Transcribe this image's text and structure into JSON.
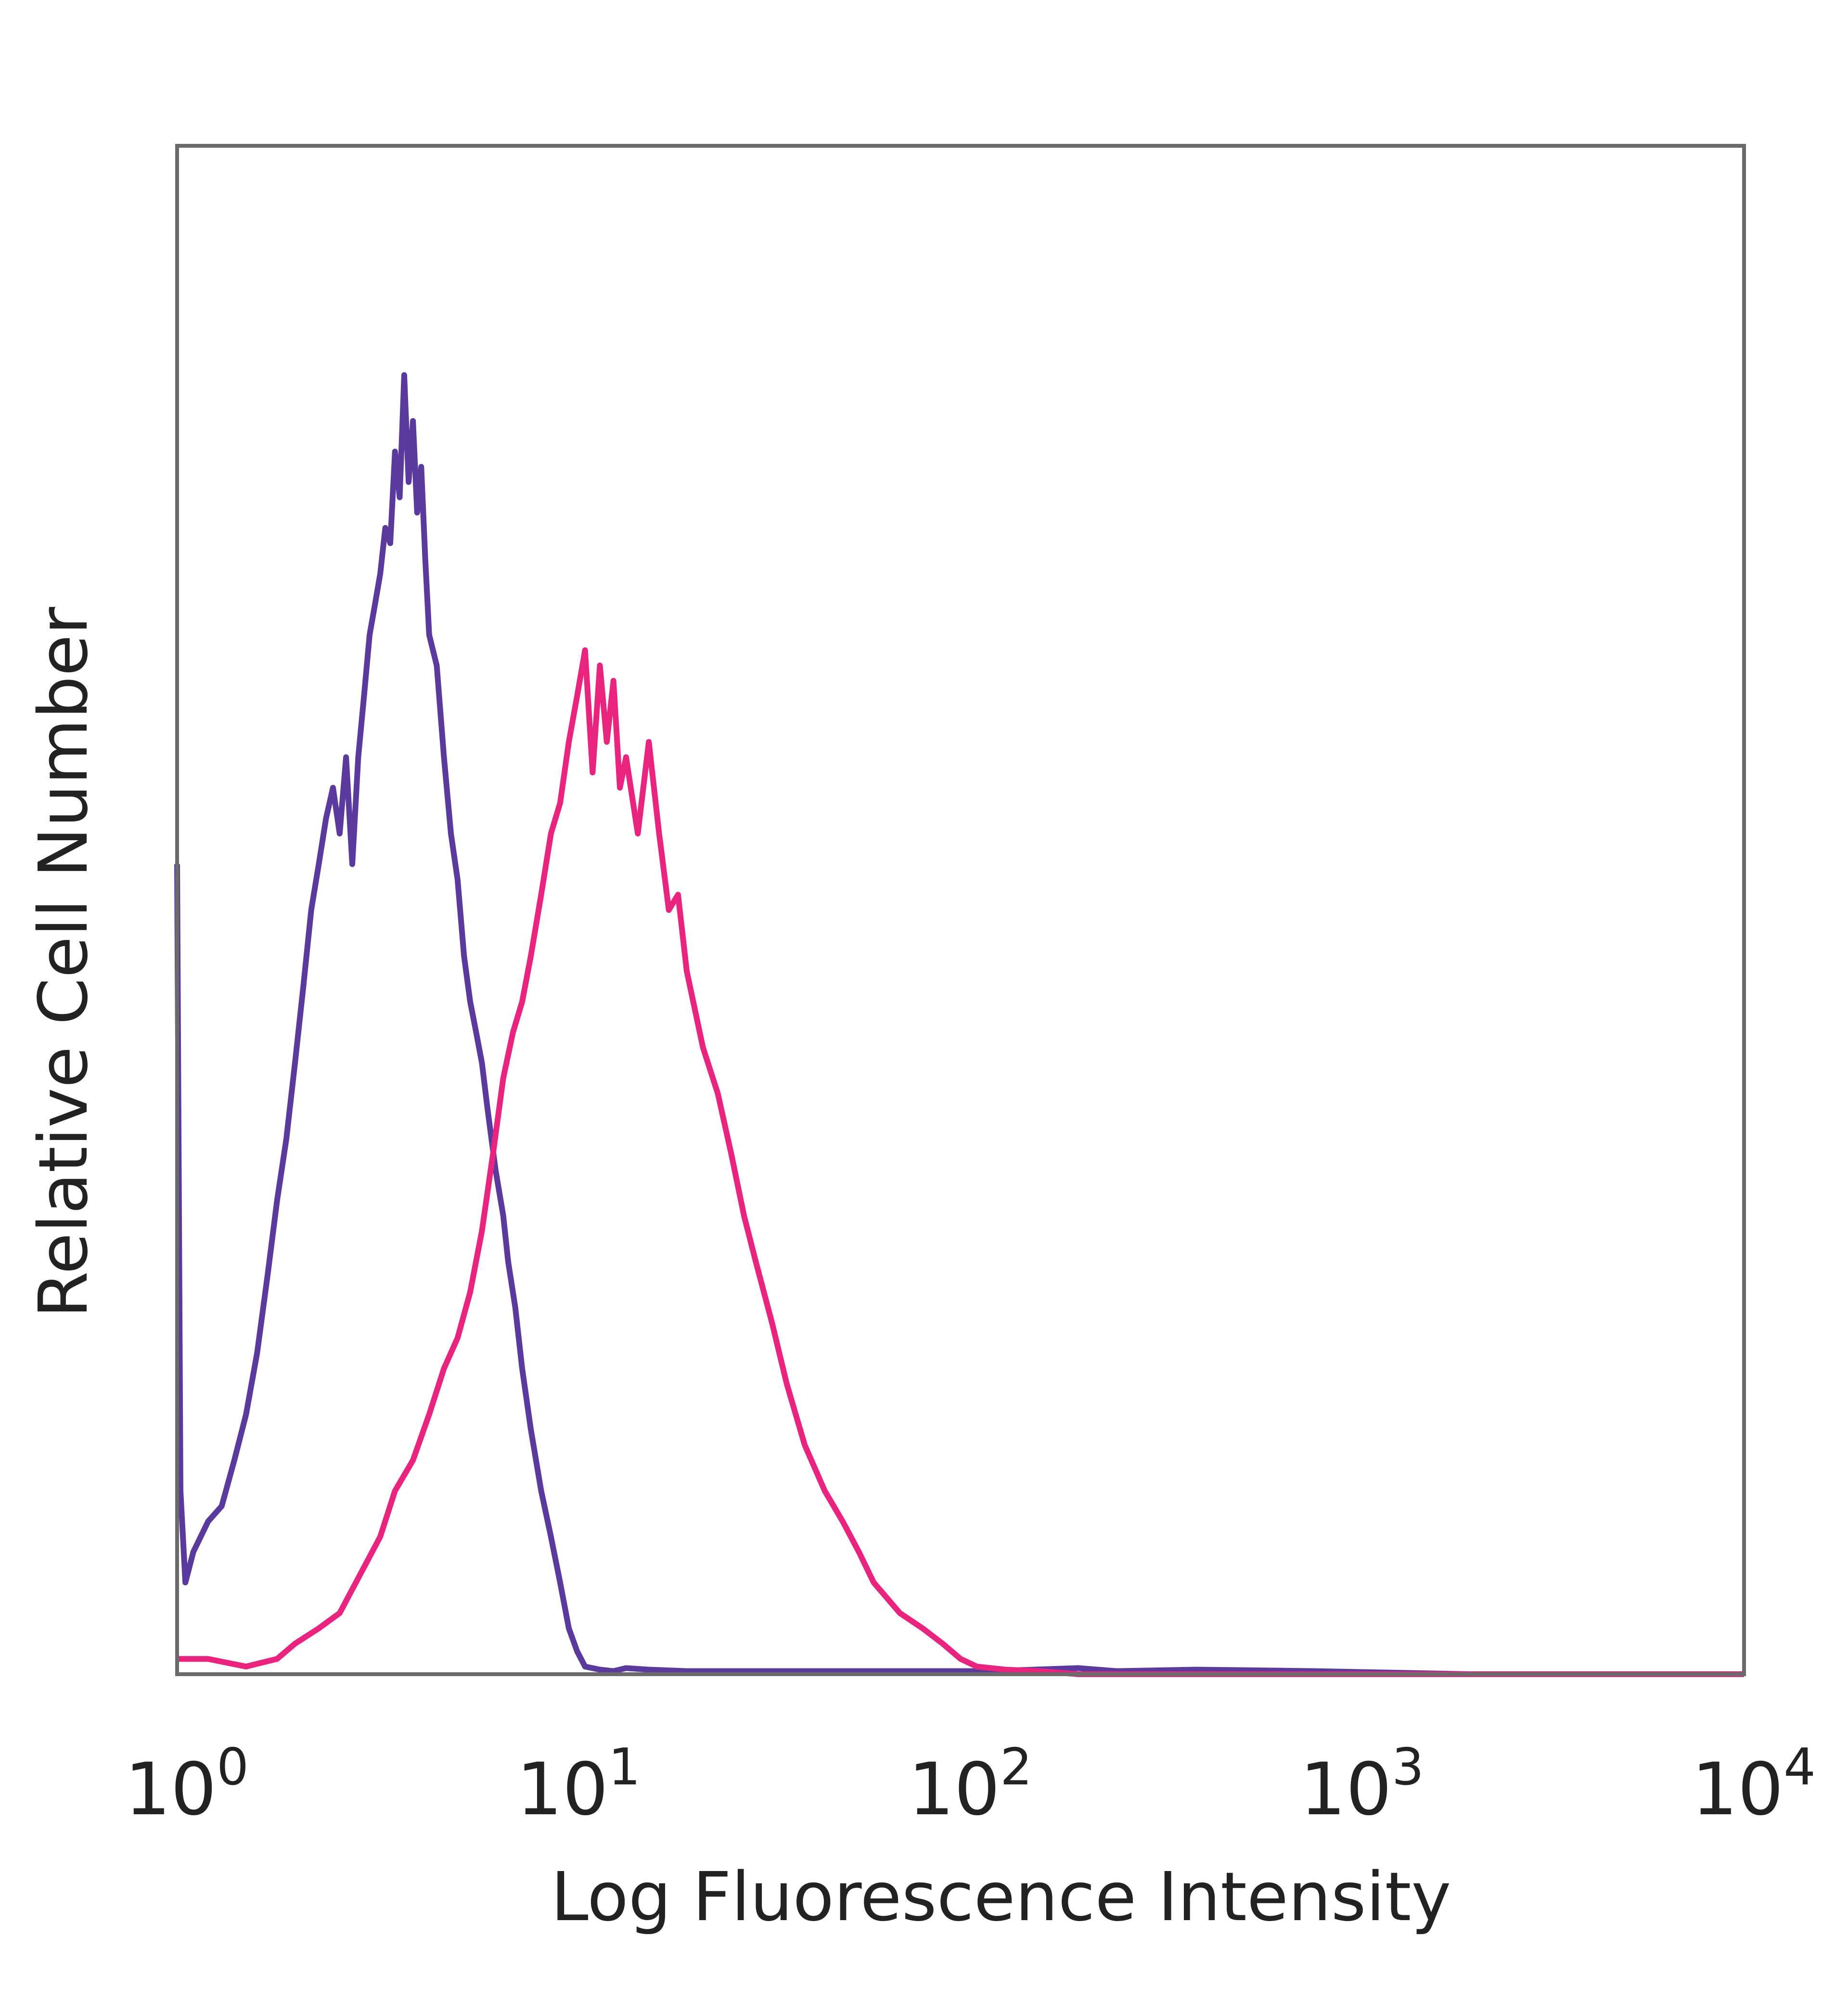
{
  "chart_data": {
    "type": "line",
    "title": "",
    "xlabel": "Log Fluorescence Intensity",
    "ylabel": "Relative Cell Number",
    "x_scale": "log",
    "xlim": [
      1,
      10000
    ],
    "ylim": [
      0,
      100
    ],
    "grid": false,
    "legend": "none",
    "x_ticks": [
      {
        "value": 1,
        "base": "10",
        "exp": "0"
      },
      {
        "value": 10,
        "base": "10",
        "exp": "1"
      },
      {
        "value": 100,
        "base": "10",
        "exp": "2"
      },
      {
        "value": 1000,
        "base": "10",
        "exp": "3"
      },
      {
        "value": 10000,
        "base": "10",
        "exp": "4"
      }
    ],
    "series": [
      {
        "color": "#5b3a9e",
        "x": [
          1.0,
          1.02,
          1.05,
          1.1,
          1.2,
          1.3,
          1.4,
          1.5,
          1.6,
          1.7,
          1.8,
          1.9,
          2.0,
          2.1,
          2.2,
          2.3,
          2.4,
          2.5,
          2.6,
          2.7,
          2.8,
          2.9,
          3.0,
          3.1,
          3.2,
          3.3,
          3.4,
          3.5,
          3.6,
          3.7,
          3.8,
          3.9,
          4.0,
          4.1,
          4.2,
          4.3,
          4.4,
          4.6,
          4.8,
          5.0,
          5.2,
          5.4,
          5.6,
          5.8,
          6.0,
          6.2,
          6.5,
          6.8,
          7.0,
          7.3,
          7.6,
          8.0,
          8.5,
          9.0,
          9.5,
          10.0,
          10.5,
          11.0,
          12.0,
          13.0,
          14.0,
          16.0,
          20.0,
          30.0,
          60.0,
          120.0,
          200.0,
          250.0,
          400.0,
          800.0,
          2000.0,
          10000.0
        ],
        "y": [
          53,
          12,
          6,
          8,
          10,
          11,
          14,
          17,
          21,
          26,
          31,
          35,
          40,
          45,
          50,
          53,
          56,
          58,
          55,
          60,
          53,
          60,
          64,
          68,
          70,
          72,
          75,
          74,
          80,
          77,
          85,
          78,
          82,
          76,
          79,
          73,
          68,
          66,
          60,
          55,
          52,
          47,
          44,
          42,
          40,
          37,
          33,
          30,
          27,
          24,
          20,
          16,
          12,
          9,
          6,
          3,
          1.5,
          0.5,
          0.3,
          0.2,
          0.4,
          0.3,
          0.2,
          0.2,
          0.2,
          0.2,
          0.4,
          0.2,
          0.3,
          0.2,
          0,
          0
        ]
      },
      {
        "color": "#e8247f",
        "x": [
          1.0,
          1.2,
          1.5,
          1.8,
          2.0,
          2.3,
          2.6,
          3.0,
          3.3,
          3.6,
          4.0,
          4.4,
          4.8,
          5.2,
          5.6,
          6.0,
          6.4,
          6.8,
          7.2,
          7.6,
          8.0,
          8.5,
          9.0,
          9.5,
          10.0,
          10.5,
          11.0,
          11.5,
          12.0,
          12.5,
          13.0,
          13.5,
          14.0,
          15.0,
          16.0,
          17.0,
          18.0,
          19.0,
          20.0,
          22.0,
          24.0,
          26.0,
          28.0,
          30.0,
          33.0,
          36.0,
          40.0,
          45.0,
          50.0,
          55.0,
          60.0,
          70.0,
          80.0,
          90.0,
          100.0,
          110.0,
          130.0,
          160.0,
          200.0,
          10000.0
        ],
        "y": [
          1,
          1,
          0.5,
          1,
          2,
          3,
          4,
          7,
          9,
          12,
          14,
          17,
          20,
          22,
          25,
          29,
          34,
          39,
          42,
          44,
          47,
          51,
          55,
          57,
          61,
          64,
          67,
          59,
          66,
          61,
          65,
          58,
          60,
          55,
          61,
          55,
          50,
          51,
          46,
          41,
          38,
          34,
          30,
          27,
          23,
          19,
          15,
          12,
          10,
          8,
          6,
          4,
          3,
          2,
          1,
          0.5,
          0.3,
          0.2,
          0,
          0
        ]
      }
    ]
  }
}
